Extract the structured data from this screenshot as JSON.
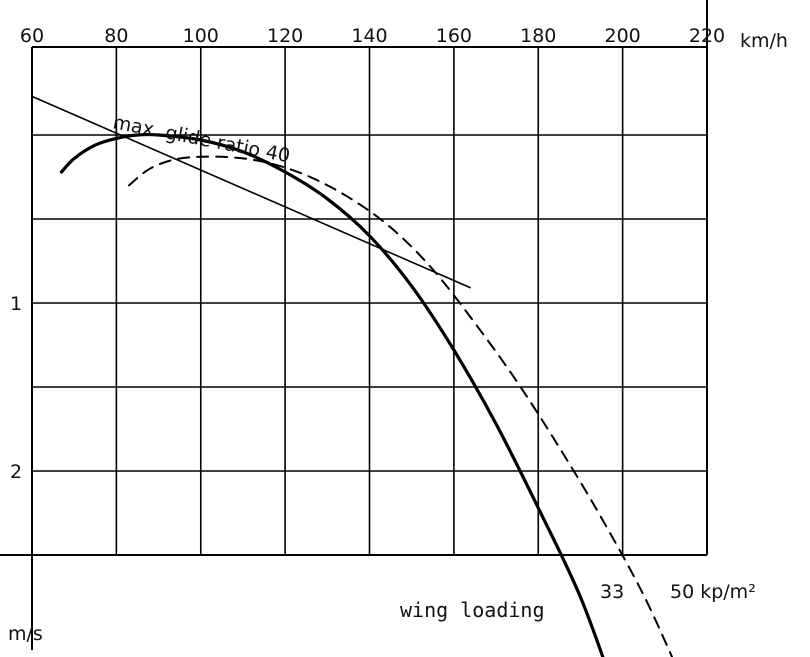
{
  "chart_data": {
    "type": "line",
    "title": "",
    "x_axis": {
      "range": [
        60,
        220
      ],
      "ticks": [
        60,
        80,
        100,
        120,
        140,
        160,
        180,
        200,
        220
      ],
      "unit": "km/h",
      "grid": true
    },
    "y_axis": {
      "range": [
        0,
        3.3
      ],
      "inverted": true,
      "tick_labels": [
        {
          "value": 1,
          "label": "1"
        },
        {
          "value": 2,
          "label": "2"
        }
      ],
      "unit": "m/s",
      "grid_step": 0.5
    },
    "series": [
      {
        "name": "",
        "style": "solid",
        "color": "#000000",
        "end_label": "33",
        "points": [
          [
            67,
            0.22
          ],
          [
            70,
            0.14
          ],
          [
            75,
            0.06
          ],
          [
            80,
            0.02
          ],
          [
            85,
            0.0
          ],
          [
            90,
            0.0
          ],
          [
            100,
            0.03
          ],
          [
            110,
            0.1
          ],
          [
            120,
            0.22
          ],
          [
            130,
            0.38
          ],
          [
            140,
            0.6
          ],
          [
            150,
            0.9
          ],
          [
            160,
            1.28
          ],
          [
            170,
            1.72
          ],
          [
            180,
            2.22
          ],
          [
            190,
            2.75
          ],
          [
            198,
            3.3
          ]
        ]
      },
      {
        "name": "",
        "style": "dashed",
        "color": "#000000",
        "end_label": "50 kp/m²",
        "points": [
          [
            83,
            0.3
          ],
          [
            88,
            0.2
          ],
          [
            95,
            0.14
          ],
          [
            105,
            0.13
          ],
          [
            115,
            0.16
          ],
          [
            125,
            0.24
          ],
          [
            135,
            0.37
          ],
          [
            145,
            0.55
          ],
          [
            155,
            0.8
          ],
          [
            165,
            1.12
          ],
          [
            175,
            1.47
          ],
          [
            185,
            1.86
          ],
          [
            195,
            2.28
          ],
          [
            205,
            2.74
          ],
          [
            213,
            3.18
          ]
        ]
      }
    ],
    "tangent_line": {
      "from": [
        60,
        -0.23
      ],
      "to": [
        164,
        0.91
      ]
    },
    "annotations": {
      "glide": "max. glide ratio  40",
      "wing_loading_label": "wing loading",
      "load_low": "33",
      "load_high": "50 kp/m²"
    }
  }
}
